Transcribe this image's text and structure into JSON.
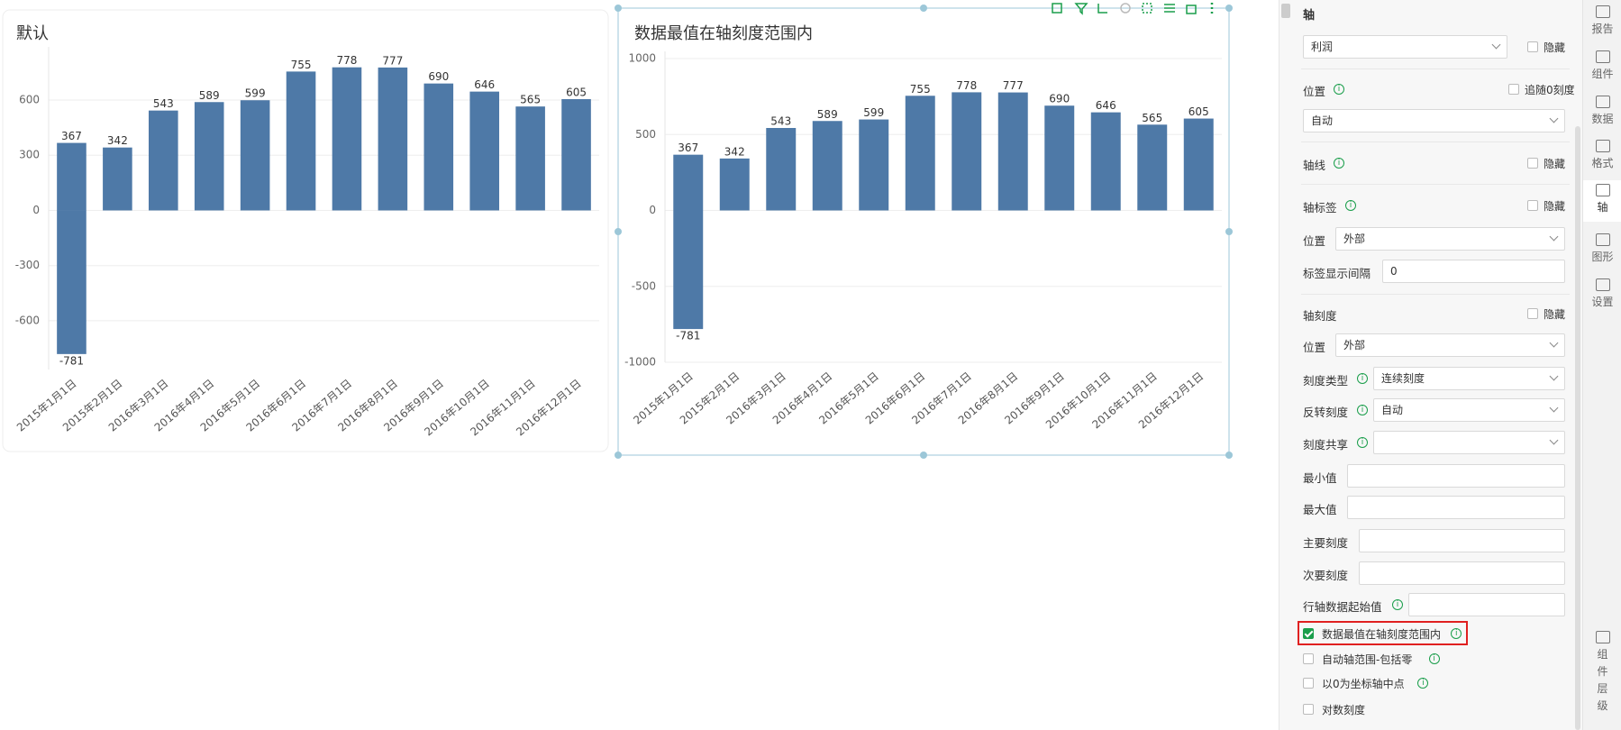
{
  "chart_data": [
    {
      "type": "bar",
      "title": "默认",
      "categories": [
        "2015年1月1日",
        "2015年2月1日",
        "2016年3月1日",
        "2016年4月1日",
        "2016年5月1日",
        "2016年6月1日",
        "2016年7月1日",
        "2016年8月1日",
        "2016年9月1日",
        "2016年10月1日",
        "2016年11月1日",
        "2016年12月1日"
      ],
      "series": [
        {
          "color": "#4e79a7",
          "values": [
            367,
            342,
            543,
            589,
            599,
            755,
            778,
            777,
            690,
            646,
            565,
            605
          ]
        },
        {
          "color": "#4e79a7",
          "values": [
            -781,
            null,
            null,
            null,
            null,
            null,
            null,
            null,
            null,
            null,
            null,
            null
          ]
        }
      ],
      "ylim": [
        -865,
        850
      ],
      "yticks": [
        -600,
        -300,
        0,
        300,
        600
      ],
      "grid": true
    },
    {
      "type": "bar",
      "title": "数据最值在轴刻度范围内",
      "categories": [
        "2015年1月1日",
        "2015年2月1日",
        "2016年3月1日",
        "2016年4月1日",
        "2016年5月1日",
        "2016年6月1日",
        "2016年7月1日",
        "2016年8月1日",
        "2016年9月1日",
        "2016年10月1日",
        "2016年11月1日",
        "2016年12月1日"
      ],
      "series": [
        {
          "color": "#4e79a7",
          "values": [
            367,
            342,
            543,
            589,
            599,
            755,
            778,
            777,
            690,
            646,
            565,
            605
          ]
        },
        {
          "color": "#4e79a7",
          "values": [
            -781,
            null,
            null,
            null,
            null,
            null,
            null,
            null,
            null,
            null,
            null,
            null
          ]
        }
      ],
      "ylim": [
        -1000,
        1000
      ],
      "yticks": [
        -1000,
        -500,
        0,
        500,
        1000
      ],
      "grid": true
    }
  ],
  "panel": {
    "title": "轴",
    "rows": [
      {
        "field": "select",
        "value": "利润",
        "hide": "隐藏"
      },
      {
        "label": "位置",
        "info": true,
        "check": "追随0刻度"
      },
      {
        "field": "select",
        "value": "自动"
      },
      {
        "label": "轴线",
        "info": true,
        "hide": "隐藏"
      },
      {
        "label": "轴标签",
        "info": true,
        "hide": "隐藏"
      },
      {
        "label": "位置",
        "field": "select",
        "value": "外部"
      },
      {
        "label": "标签显示间隔",
        "field": "input",
        "value": "0"
      },
      {
        "label": "轴刻度",
        "hide": "隐藏"
      },
      {
        "label": "位置",
        "field": "select",
        "value": "外部"
      },
      {
        "label": "刻度类型",
        "info": true,
        "field": "select",
        "value": "连续刻度"
      },
      {
        "label": "反转刻度",
        "info": true,
        "field": "select",
        "value": "自动"
      },
      {
        "label": "刻度共享",
        "info": true,
        "field": "select"
      },
      {
        "label": "最小值",
        "field": "input"
      },
      {
        "label": "最大值",
        "field": "input"
      },
      {
        "label": "主要刻度",
        "field": "input"
      },
      {
        "label": "次要刻度",
        "field": "input"
      },
      {
        "label": "行轴数据起始值",
        "info": true,
        "field": "input"
      }
    ],
    "options": [
      {
        "label": "数据最值在轴刻度范围内",
        "checked": true,
        "info": true,
        "highlight": true
      },
      {
        "label": "自动轴范围-包括零",
        "checked": false,
        "info": true
      },
      {
        "label": "以0为坐标轴中点",
        "checked": false,
        "info": true
      },
      {
        "label": "对数刻度",
        "checked": false
      }
    ]
  },
  "sidebar": [
    "报告",
    "组件",
    "数据",
    "格式",
    "轴",
    "图形",
    "设置",
    "组件层级"
  ]
}
